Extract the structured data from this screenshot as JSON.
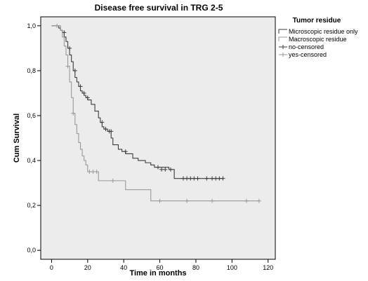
{
  "chart_data": {
    "type": "line",
    "step": true,
    "title": "Disease free survival in TRG 2-5",
    "xlabel": "Time in months",
    "ylabel": "Cum Survival",
    "xlim": [
      -6,
      124
    ],
    "ylim": [
      -0.04,
      1.04
    ],
    "xticks": [
      0,
      20,
      40,
      60,
      80,
      100,
      120
    ],
    "xtick_labels": [
      "0",
      "20",
      "40",
      "60",
      "80",
      "100",
      "120"
    ],
    "yticks": [
      0.0,
      0.2,
      0.4,
      0.6,
      0.8,
      1.0
    ],
    "ytick_labels": [
      "0,0",
      "0,2",
      "0,4",
      "0,6",
      "0,8",
      "1,0"
    ],
    "grid": false,
    "legend": {
      "title": "Tumor residue",
      "placement": "right",
      "entries": [
        "Microscopic residue only",
        "Macroscopic residue",
        "no-censored",
        "yes-censored"
      ]
    },
    "series": [
      {
        "name": "Microscopic residue only",
        "color": "#3c3c3c",
        "x": [
          0,
          4,
          5,
          6,
          7,
          8,
          9,
          10,
          11,
          12,
          13,
          14,
          15,
          16,
          17,
          18,
          19,
          20,
          22,
          24,
          26,
          27,
          28,
          29,
          31,
          33,
          34,
          37,
          39,
          41,
          45,
          48,
          52,
          55,
          57,
          65
        ],
        "y": [
          1.0,
          0.99,
          0.98,
          0.97,
          0.95,
          0.93,
          0.9,
          0.87,
          0.84,
          0.8,
          0.77,
          0.75,
          0.73,
          0.71,
          0.7,
          0.69,
          0.68,
          0.67,
          0.65,
          0.62,
          0.59,
          0.57,
          0.55,
          0.54,
          0.53,
          0.5,
          0.47,
          0.45,
          0.44,
          0.43,
          0.41,
          0.4,
          0.39,
          0.38,
          0.37,
          0.36
        ],
        "x_end": 68,
        "y_end_drop": 0.32,
        "tail_end": 95,
        "censored": [
          {
            "x": 7,
            "y": 0.97
          },
          {
            "x": 10,
            "y": 0.9
          },
          {
            "x": 13,
            "y": 0.8
          },
          {
            "x": 16,
            "y": 0.73
          },
          {
            "x": 18,
            "y": 0.7
          },
          {
            "x": 20,
            "y": 0.68
          },
          {
            "x": 28,
            "y": 0.57
          },
          {
            "x": 30,
            "y": 0.54
          },
          {
            "x": 32,
            "y": 0.53
          },
          {
            "x": 33,
            "y": 0.53
          },
          {
            "x": 41,
            "y": 0.44
          },
          {
            "x": 59,
            "y": 0.37
          },
          {
            "x": 61,
            "y": 0.36
          },
          {
            "x": 63,
            "y": 0.36
          },
          {
            "x": 66,
            "y": 0.36
          },
          {
            "x": 73,
            "y": 0.32
          },
          {
            "x": 75,
            "y": 0.32
          },
          {
            "x": 77,
            "y": 0.32
          },
          {
            "x": 79,
            "y": 0.32
          },
          {
            "x": 81,
            "y": 0.32
          },
          {
            "x": 86,
            "y": 0.32
          },
          {
            "x": 89,
            "y": 0.32
          },
          {
            "x": 91,
            "y": 0.32
          },
          {
            "x": 93,
            "y": 0.32
          },
          {
            "x": 95,
            "y": 0.32
          }
        ]
      },
      {
        "name": "Macroscopic residue",
        "color": "#999999",
        "x": [
          0,
          5,
          6,
          7,
          8,
          9,
          10,
          11,
          12,
          13,
          14,
          15,
          16,
          17,
          18,
          19,
          20,
          26,
          41,
          55
        ],
        "y": [
          1.0,
          0.98,
          0.95,
          0.91,
          0.87,
          0.82,
          0.75,
          0.68,
          0.61,
          0.56,
          0.52,
          0.48,
          0.45,
          0.42,
          0.4,
          0.38,
          0.35,
          0.31,
          0.27,
          0.22
        ],
        "tail_end": 115,
        "censored": [
          {
            "x": 3,
            "y": 1.0
          },
          {
            "x": 9,
            "y": 0.82
          },
          {
            "x": 12,
            "y": 0.61
          },
          {
            "x": 21,
            "y": 0.35
          },
          {
            "x": 23,
            "y": 0.35
          },
          {
            "x": 25,
            "y": 0.35
          },
          {
            "x": 34,
            "y": 0.31
          },
          {
            "x": 60,
            "y": 0.22
          },
          {
            "x": 75,
            "y": 0.22
          },
          {
            "x": 89,
            "y": 0.22
          },
          {
            "x": 108,
            "y": 0.22
          },
          {
            "x": 115,
            "y": 0.22
          }
        ]
      }
    ]
  }
}
